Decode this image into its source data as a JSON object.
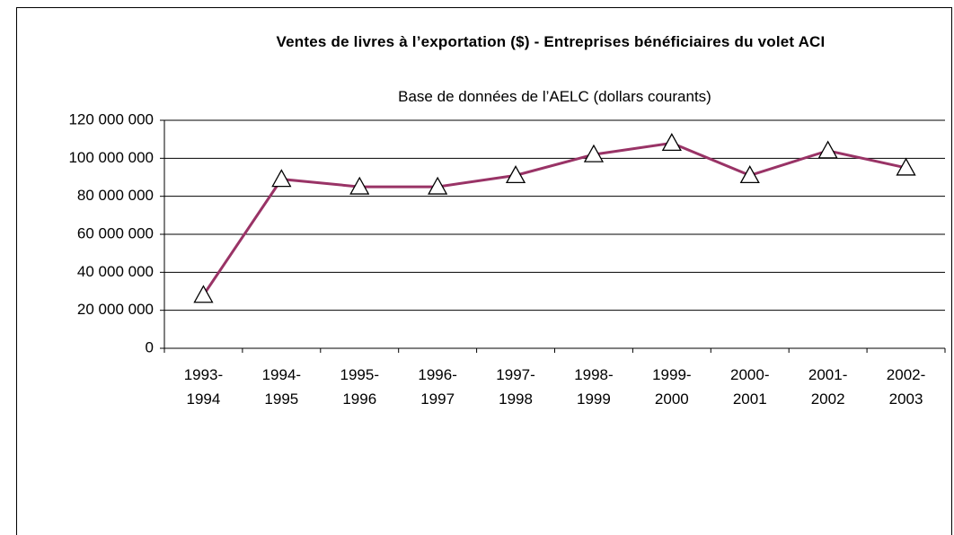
{
  "chart_data": {
    "type": "line",
    "title": "Ventes de livres à l’exportation ($) - Entreprises bénéficiaires du volet ACI",
    "subtitle": "Base de données de l’AELC (dollars courants)",
    "categories": [
      "1993-1994",
      "1994-1995",
      "1995-1996",
      "1996-1997",
      "1997-1998",
      "1998-1999",
      "1999-2000",
      "2000-2001",
      "2001-2002",
      "2002-2003"
    ],
    "series": [
      {
        "name": "Ventes",
        "color": "#993366",
        "values": [
          28000000,
          89000000,
          85000000,
          85000000,
          91000000,
          102000000,
          108000000,
          91000000,
          104000000,
          95000000
        ]
      }
    ],
    "ylim": [
      0,
      120000000
    ],
    "yticks": [
      {
        "value": 0,
        "label": "0"
      },
      {
        "value": 20000000,
        "label": "20 000 000"
      },
      {
        "value": 40000000,
        "label": "40 000 000"
      },
      {
        "value": 60000000,
        "label": "60 000 000"
      },
      {
        "value": 80000000,
        "label": "80 000 000"
      },
      {
        "value": 100000000,
        "label": "100 000 000"
      },
      {
        "value": 120000000,
        "label": "120 000 000"
      }
    ],
    "grid": true
  }
}
